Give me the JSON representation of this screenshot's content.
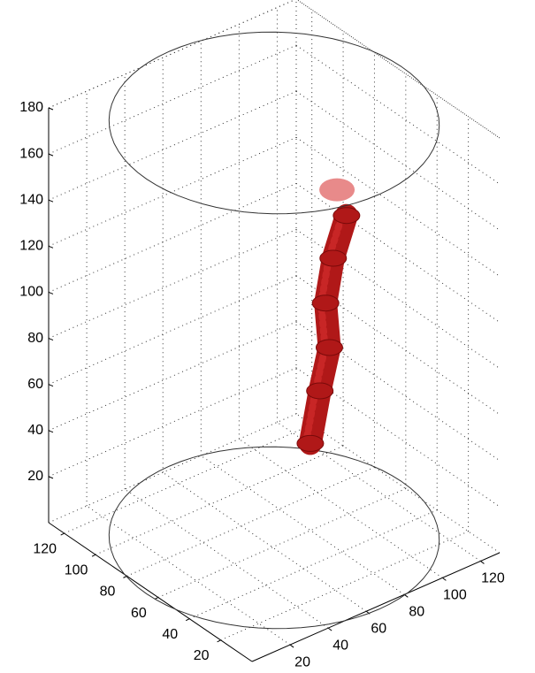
{
  "chart_data": {
    "type": "tube3d",
    "xlim": [
      0,
      130
    ],
    "ylim": [
      0,
      130
    ],
    "zlim": [
      0,
      180
    ],
    "xticks": [
      20,
      40,
      60,
      80,
      100,
      120
    ],
    "yticks": [
      20,
      40,
      60,
      80,
      100,
      120
    ],
    "zticks": [
      20,
      40,
      60,
      80,
      100,
      120,
      140,
      160,
      180
    ],
    "grid": true,
    "circles": [
      {
        "center": [
          65,
          65
        ],
        "radius": 67,
        "z": 0
      },
      {
        "center": [
          65,
          65
        ],
        "radius": 67,
        "z": 180
      }
    ],
    "series": [
      {
        "color": "#b01818",
        "end_color": "#e88a8a",
        "x": [
          84,
          89,
          94,
          92,
          96,
          103,
          98
        ],
        "y": [
          65,
          65,
          65,
          65,
          65,
          65,
          65
        ],
        "z": [
          34,
          55,
          72,
          92,
          110,
          126,
          139
        ]
      }
    ]
  }
}
